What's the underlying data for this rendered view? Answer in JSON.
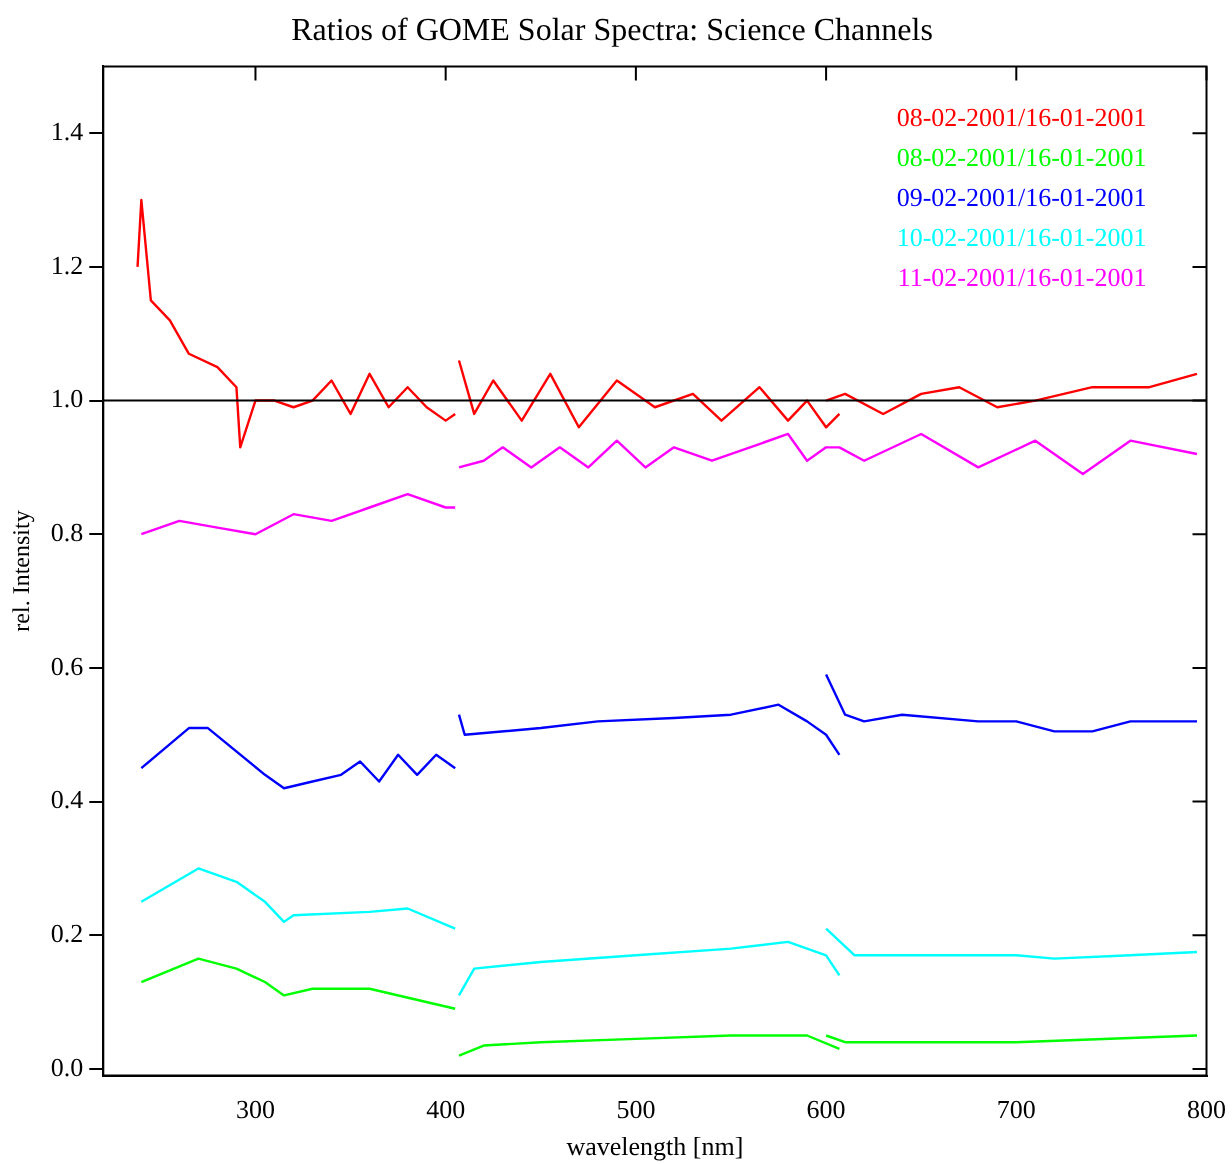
{
  "chart_data": {
    "type": "line",
    "title": "Ratios of GOME Solar Spectra: Science Channels",
    "xlabel": "wavelength [nm]",
    "ylabel": "rel. Intensity",
    "xlim": [
      220,
      800
    ],
    "xticks": [
      300,
      400,
      500,
      600,
      700,
      800
    ],
    "ylim": [
      -0.01,
      1.5
    ],
    "yticks": [
      {
        "value": 0,
        "label": "0.0"
      },
      {
        "value": 0.2,
        "label": "0.2"
      },
      {
        "value": 0.4,
        "label": "0.4"
      },
      {
        "value": 0.6,
        "label": "0.6"
      },
      {
        "value": 0.8,
        "label": "0.8"
      },
      {
        "value": 1,
        "label": "1.0"
      },
      {
        "value": 1.2,
        "label": "1.2"
      },
      {
        "value": 1.4,
        "label": "1.4"
      }
    ],
    "grid": false,
    "legend": "top right",
    "marker": "none",
    "line_style": "solid",
    "ref_lines": [
      {
        "axis": "y",
        "value": 1,
        "color": "#000000"
      }
    ],
    "series": [
      {
        "name": "08-02-2001/16-01-2001",
        "color": "#ff0000",
        "x": [
          238,
          240,
          245,
          255,
          265,
          280,
          290,
          292,
          300,
          310,
          320,
          330,
          340,
          350,
          360,
          370,
          380,
          390,
          400,
          405
        ],
        "values": [
          1.2,
          1.3,
          1.15,
          1.12,
          1.07,
          1.05,
          1.02,
          0.93,
          1.0,
          1.0,
          0.99,
          1.0,
          1.03,
          0.98,
          1.04,
          0.99,
          1.02,
          0.99,
          0.97,
          0.98
        ]
      },
      {
        "name": "08-02-2001/16-01-2001",
        "color": "#00ff00",
        "x": [
          240,
          270,
          290,
          305,
          315,
          330,
          360,
          405
        ],
        "values": [
          0.13,
          0.165,
          0.15,
          0.13,
          0.11,
          0.12,
          0.12,
          0.09
        ]
      },
      {
        "name": "09-02-2001/16-01-2001",
        "color": "#0000ff",
        "x": [
          240,
          265,
          275,
          305,
          315,
          330,
          345,
          355,
          365,
          375,
          385,
          395,
          405
        ],
        "values": [
          0.45,
          0.51,
          0.51,
          0.44,
          0.42,
          0.43,
          0.44,
          0.46,
          0.43,
          0.47,
          0.44,
          0.47,
          0.45
        ]
      },
      {
        "name": "10-02-2001/16-01-2001",
        "color": "#00ffff",
        "x": [
          240,
          270,
          290,
          305,
          315,
          320,
          360,
          380,
          405
        ],
        "values": [
          0.25,
          0.3,
          0.28,
          0.25,
          0.22,
          0.23,
          0.235,
          0.24,
          0.21
        ]
      },
      {
        "name": "11-02-2001/16-01-2001",
        "color": "#ff00ff",
        "x": [
          240,
          260,
          280,
          300,
          320,
          340,
          360,
          380,
          400,
          405
        ],
        "values": [
          0.8,
          0.82,
          0.81,
          0.8,
          0.83,
          0.82,
          0.84,
          0.86,
          0.84,
          0.84
        ]
      },
      {
        "color": "#ff0000",
        "x": [
          407,
          415,
          425,
          440,
          455,
          470,
          490,
          510,
          530,
          545,
          565,
          580,
          590,
          600,
          607
        ],
        "values": [
          1.06,
          0.98,
          1.03,
          0.97,
          1.04,
          0.96,
          1.03,
          0.99,
          1.01,
          0.97,
          1.02,
          0.97,
          1.0,
          0.96,
          0.98
        ]
      },
      {
        "color": "#ff0000",
        "x": [
          600,
          610,
          630,
          650,
          670,
          690,
          710,
          740,
          770,
          795
        ],
        "values": [
          1.0,
          1.01,
          0.98,
          1.01,
          1.02,
          0.99,
          1.0,
          1.02,
          1.02,
          1.04
        ]
      },
      {
        "color": "#00ff00",
        "x": [
          407,
          420,
          450,
          500,
          550,
          590,
          607
        ],
        "values": [
          0.02,
          0.035,
          0.04,
          0.045,
          0.05,
          0.05,
          0.03
        ]
      },
      {
        "color": "#00ff00",
        "x": [
          600,
          610,
          700,
          795
        ],
        "values": [
          0.05,
          0.04,
          0.04,
          0.05
        ]
      },
      {
        "color": "#0000ff",
        "x": [
          407,
          410,
          450,
          480,
          520,
          550,
          575,
          590,
          600,
          607
        ],
        "values": [
          0.53,
          0.5,
          0.51,
          0.52,
          0.525,
          0.53,
          0.545,
          0.52,
          0.5,
          0.47
        ]
      },
      {
        "color": "#0000ff",
        "x": [
          600,
          610,
          620,
          640,
          680,
          700,
          720,
          740,
          760,
          795
        ],
        "values": [
          0.59,
          0.53,
          0.52,
          0.53,
          0.52,
          0.52,
          0.505,
          0.505,
          0.52,
          0.52
        ]
      },
      {
        "color": "#00ffff",
        "x": [
          407,
          415,
          450,
          500,
          550,
          580,
          600,
          607
        ],
        "values": [
          0.11,
          0.15,
          0.16,
          0.17,
          0.18,
          0.19,
          0.17,
          0.14
        ]
      },
      {
        "color": "#00ffff",
        "x": [
          600,
          615,
          650,
          700,
          720,
          760,
          795
        ],
        "values": [
          0.21,
          0.17,
          0.17,
          0.17,
          0.165,
          0.17,
          0.175
        ]
      },
      {
        "color": "#ff00ff",
        "x": [
          407,
          420,
          430,
          445,
          460,
          475,
          490,
          505,
          520,
          540,
          560,
          580,
          590,
          600,
          607,
          620,
          650,
          680,
          710,
          735,
          760,
          795
        ],
        "values": [
          0.9,
          0.91,
          0.93,
          0.9,
          0.93,
          0.9,
          0.94,
          0.9,
          0.93,
          0.91,
          0.93,
          0.95,
          0.91,
          0.93,
          0.93,
          0.91,
          0.95,
          0.9,
          0.94,
          0.89,
          0.94,
          0.92
        ]
      }
    ]
  }
}
